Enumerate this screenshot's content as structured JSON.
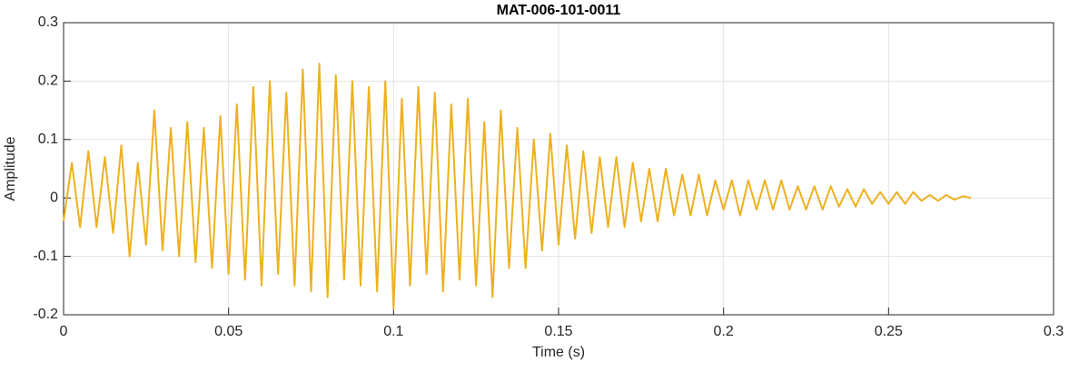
{
  "chart_data": {
    "type": "line",
    "title": "MAT-006-101-0011",
    "xlabel": "Time (s)",
    "ylabel": "Amplitude",
    "x": [
      0,
      0.0025,
      0.005,
      0.0075,
      0.01,
      0.0125,
      0.015,
      0.0175,
      0.02,
      0.0225,
      0.025,
      0.0275,
      0.03,
      0.0325,
      0.035,
      0.0375,
      0.04,
      0.0425,
      0.045,
      0.0475,
      0.05,
      0.0525,
      0.055,
      0.0575,
      0.06,
      0.0625,
      0.065,
      0.0675,
      0.07,
      0.0725,
      0.075,
      0.0775,
      0.08,
      0.0825,
      0.085,
      0.0875,
      0.09,
      0.0925,
      0.095,
      0.0975,
      0.1,
      0.1025,
      0.105,
      0.1075,
      0.11,
      0.1125,
      0.115,
      0.1175,
      0.12,
      0.1225,
      0.125,
      0.1275,
      0.13,
      0.1325,
      0.135,
      0.1375,
      0.14,
      0.1425,
      0.145,
      0.1475,
      0.15,
      0.1525,
      0.155,
      0.1575,
      0.16,
      0.1625,
      0.165,
      0.1675,
      0.17,
      0.1725,
      0.175,
      0.1775,
      0.18,
      0.1825,
      0.185,
      0.1875,
      0.19,
      0.1925,
      0.195,
      0.1975,
      0.2,
      0.2025,
      0.205,
      0.2075,
      0.21,
      0.2125,
      0.215,
      0.2175,
      0.22,
      0.2225,
      0.225,
      0.2275,
      0.23,
      0.2325,
      0.235,
      0.2375,
      0.24,
      0.2425,
      0.245,
      0.2475,
      0.25,
      0.2525,
      0.255,
      0.2575,
      0.26,
      0.2625,
      0.265,
      0.2675,
      0.27,
      0.2725,
      0.275
    ],
    "series": [
      {
        "name": "Amplitude",
        "color": "#EDB120",
        "values": [
          -0.04,
          0.06,
          -0.05,
          0.08,
          -0.05,
          0.07,
          -0.06,
          0.09,
          -0.1,
          0.06,
          -0.08,
          0.15,
          -0.09,
          0.12,
          -0.1,
          0.13,
          -0.11,
          0.12,
          -0.12,
          0.14,
          -0.13,
          0.16,
          -0.14,
          0.19,
          -0.15,
          0.2,
          -0.13,
          0.18,
          -0.15,
          0.22,
          -0.16,
          0.23,
          -0.17,
          0.21,
          -0.14,
          0.2,
          -0.15,
          0.19,
          -0.16,
          0.2,
          -0.19,
          0.17,
          -0.15,
          0.19,
          -0.13,
          0.18,
          -0.16,
          0.16,
          -0.14,
          0.17,
          -0.15,
          0.13,
          -0.17,
          0.15,
          -0.12,
          0.12,
          -0.12,
          0.1,
          -0.09,
          0.11,
          -0.08,
          0.09,
          -0.07,
          0.08,
          -0.06,
          0.07,
          -0.05,
          0.07,
          -0.05,
          0.06,
          -0.04,
          0.05,
          -0.04,
          0.05,
          -0.03,
          0.04,
          -0.03,
          0.04,
          -0.03,
          0.03,
          -0.02,
          0.03,
          -0.03,
          0.03,
          -0.02,
          0.03,
          -0.02,
          0.03,
          -0.02,
          0.02,
          -0.02,
          0.02,
          -0.02,
          0.02,
          -0.015,
          0.015,
          -0.015,
          0.015,
          -0.01,
          0.01,
          -0.01,
          0.01,
          -0.01,
          0.01,
          -0.005,
          0.005,
          -0.005,
          0.005,
          -0.003,
          0.003,
          0
        ]
      }
    ],
    "xlim": [
      0,
      0.3
    ],
    "xticks": [
      0,
      0.05,
      0.1,
      0.15,
      0.2,
      0.25,
      0.3
    ],
    "ylim": [
      -0.2,
      0.3
    ],
    "yticks": [
      -0.2,
      -0.1,
      0,
      0.1,
      0.2,
      0.3
    ],
    "grid": true
  }
}
